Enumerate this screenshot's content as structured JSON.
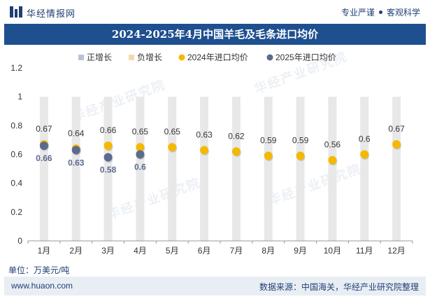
{
  "header": {
    "site_name": "华经情报网",
    "tagline_left": "专业严谨",
    "tagline_right": "客观科学"
  },
  "footer": {
    "unit": "单位：万美元/吨",
    "url": "www.huaon.com",
    "source": "数据来源：中国海关，华经产业研究院整理"
  },
  "watermark": "华经产业研究院",
  "colors": {
    "title_bg": "#1e4f8f",
    "bar_bg": "#e8e8e8",
    "series_2024": "#f5b800",
    "series_2025": "#5b6a8f",
    "positive": "#b8c4d6",
    "negative": "#f4d9b0"
  },
  "chart_data": {
    "type": "scatter",
    "title": "2024-2025年4月中国羊毛及毛条进口均价",
    "categories": [
      "1月",
      "2月",
      "3月",
      "4月",
      "5月",
      "6月",
      "7月",
      "8月",
      "9月",
      "10月",
      "11月",
      "12月"
    ],
    "ylim": [
      0,
      1.2
    ],
    "yticks": [
      "0",
      "0.2",
      "0.4",
      "0.6",
      "0.8",
      "1",
      "1.2"
    ],
    "yticks_values": [
      0,
      0.2,
      0.4,
      0.6,
      0.8,
      1.0,
      1.2
    ],
    "legend": [
      "正增长",
      "负增长",
      "2024年进口均价",
      "2025年进口均价"
    ],
    "series": [
      {
        "name": "2024年进口均价",
        "values": [
          0.67,
          0.64,
          0.66,
          0.65,
          0.65,
          0.63,
          0.62,
          0.59,
          0.59,
          0.56,
          0.6,
          0.67
        ],
        "labels": [
          "0.67",
          "0.64",
          "0.66",
          "0.65",
          "0.65",
          "0.63",
          "0.62",
          "0.59",
          "0.59",
          "0.56",
          "0.6",
          "0.67"
        ]
      },
      {
        "name": "2025年进口均价",
        "values": [
          0.66,
          0.63,
          0.58,
          0.6
        ],
        "labels": [
          "0.66",
          "0.63",
          "0.58",
          "0.6"
        ]
      }
    ]
  }
}
